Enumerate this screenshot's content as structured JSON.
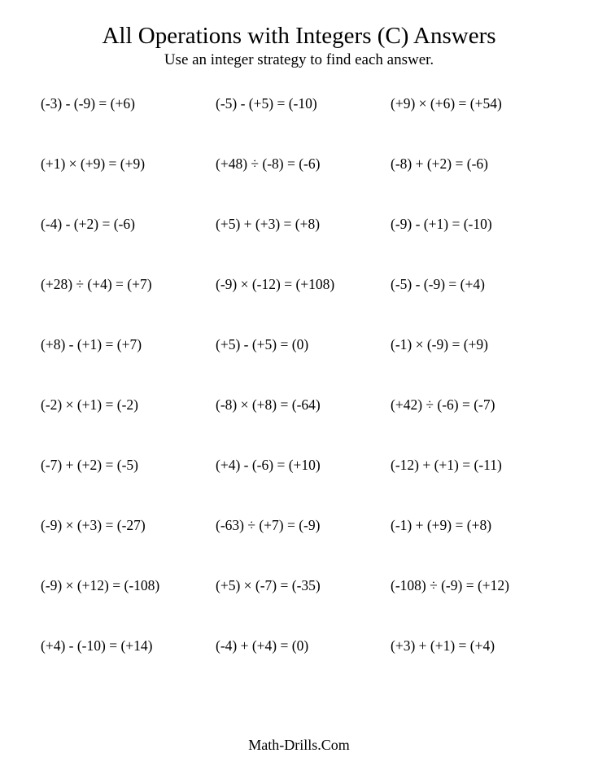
{
  "title": "All Operations with Integers (C) Answers",
  "subtitle": "Use an integer strategy to find each answer.",
  "footer": "Math-Drills.Com",
  "problems": [
    [
      "(-3) - (-9) = (+6)",
      "(-5) - (+5) = (-10)",
      "(+9) × (+6) = (+54)"
    ],
    [
      "(+1) × (+9) = (+9)",
      "(+48) ÷ (-8) = (-6)",
      "(-8) + (+2) = (-6)"
    ],
    [
      "(-4) - (+2) = (-6)",
      "(+5) + (+3) = (+8)",
      "(-9) - (+1) = (-10)"
    ],
    [
      "(+28) ÷ (+4) = (+7)",
      "(-9) × (-12) = (+108)",
      "(-5) - (-9) = (+4)"
    ],
    [
      "(+8) - (+1) = (+7)",
      "(+5) - (+5) = (0)",
      "(-1) × (-9) = (+9)"
    ],
    [
      "(-2) × (+1) = (-2)",
      "(-8) × (+8) = (-64)",
      "(+42) ÷ (-6) = (-7)"
    ],
    [
      "(-7) + (+2) = (-5)",
      "(+4) - (-6) = (+10)",
      "(-12) + (+1) = (-11)"
    ],
    [
      "(-9) × (+3) = (-27)",
      "(-63) ÷ (+7) = (-9)",
      "(-1) + (+9) = (+8)"
    ],
    [
      "(-9) × (+12) = (-108)",
      "(+5) × (-7) = (-35)",
      "(-108) ÷ (-9) = (+12)"
    ],
    [
      "(+4) - (-10) = (+14)",
      "(-4) + (+4) = (0)",
      "(+3) + (+1) = (+4)"
    ]
  ]
}
